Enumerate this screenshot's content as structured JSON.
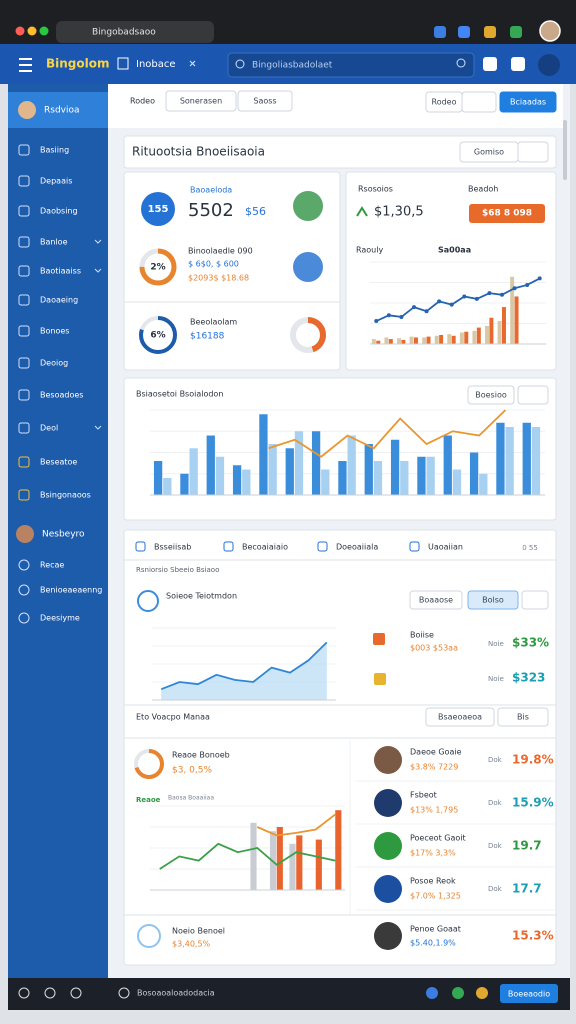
{
  "browser": {
    "url": "Bingobadsaoo"
  },
  "header": {
    "logo": "Bingolom",
    "tab": "Inobace",
    "search": "Bingoliasbadolaet"
  },
  "sidebar": {
    "active": "Rsdvioa",
    "items": [
      "Basiing",
      "Depaais",
      "Daobsing",
      "Banloe",
      "Baotiaaiss",
      "Daoaeing",
      "Bonoes",
      "Deoiog",
      "Besoadoes",
      "Deol",
      "Beseatoe",
      "Bsingonaoos"
    ],
    "profile": "Nesbeyro",
    "more": [
      "Recae",
      "Benioeaeaenng",
      "Deesiyme"
    ]
  },
  "toolbar": {
    "tabs": [
      "Rodeo",
      "Sonerasen",
      "Saoss"
    ],
    "filter": "Rodeo",
    "action": "Bciaadas"
  },
  "page_title": "Rituootsia Bnoeiisaoia",
  "page_button": "Gomiso",
  "stats": {
    "kpi": {
      "badge": "155",
      "label": "Baoaeloda",
      "value": "5502",
      "delta": "$56"
    },
    "second": {
      "badge": "2%",
      "label": "Binoolaedle 090",
      "line1": "$ 6$0, $ 600",
      "line2": "$2093$ $18.68"
    },
    "third": {
      "badge": "6%",
      "label": "Beeolaolam",
      "value": "$16188"
    }
  },
  "sales": {
    "label": "Rsosoios",
    "period": "Beadoh",
    "value": "$1,30,5",
    "button": "$68 8 098",
    "chart_label": "Raouly",
    "chart_note": "Sa00aa",
    "ylim": [
      0,
      100
    ],
    "line": [
      28,
      35,
      33,
      45,
      40,
      52,
      48,
      58,
      55,
      62,
      60,
      68,
      72,
      80
    ],
    "line_color": "#2563b0",
    "series": [
      {
        "color": "#d8c8a6",
        "values": [
          6,
          8,
          7,
          9,
          8,
          10,
          12,
          14,
          16,
          22,
          28,
          82,
          null,
          null
        ]
      },
      {
        "color": "#e8692e",
        "values": [
          4,
          6,
          5,
          8,
          9,
          11,
          10,
          15,
          20,
          32,
          45,
          58,
          null,
          null
        ]
      }
    ]
  },
  "main_chart": {
    "title": "Bsiaosetoi Bsoialodon",
    "button": "Boesioo",
    "ylim": [
      0,
      100
    ],
    "series": [
      {
        "color": "#3a8ddb",
        "values": [
          40,
          25,
          70,
          35,
          95,
          55,
          75,
          40,
          60,
          65,
          45,
          70,
          50,
          85,
          85
        ]
      },
      {
        "color": "#a8d0f0",
        "values": [
          20,
          55,
          45,
          30,
          60,
          75,
          30,
          70,
          40,
          40,
          45,
          30,
          25,
          80,
          80
        ]
      }
    ],
    "line": [
      null,
      null,
      null,
      null,
      55,
      65,
      45,
      70,
      55,
      90,
      60,
      75,
      70,
      100,
      null
    ],
    "line_color": "#e9962e"
  },
  "panel": {
    "tabs": [
      "Bsseiisab",
      "Becoaiaiaio",
      "Doeoaiiala",
      "Uaoaiian"
    ],
    "count": "0 55",
    "subtitle": "Rsniorsio Sbeeio Bsiaoo",
    "section": {
      "title": "Soieoe Teiotmdon",
      "buttons": [
        "Boaaose",
        "Bolso"
      ]
    },
    "area_chart": {
      "ylim": [
        0,
        100
      ],
      "line": [
        15,
        25,
        22,
        35,
        28,
        25,
        45,
        38,
        55,
        80
      ],
      "line_color": "#2f86d6"
    },
    "metrics": {
      "label": "Boiise",
      "sub": "$003 $53aa",
      "k1": "Noie",
      "v1": "$33%",
      "k2": "Noie",
      "v2": "$323"
    },
    "section2": {
      "title": "Eto Voacpo Manaa",
      "buttons": [
        "Bsaeoaeoa",
        "Bis"
      ]
    },
    "donut": {
      "label": "Reaoe Bonoeb",
      "value": "$3, 0,5%"
    },
    "mixed_chart": {
      "label": "Reaoe",
      "note": "Baosa Boaaiiaa",
      "ylim": [
        0,
        100
      ],
      "line": [
        25,
        40,
        35,
        55,
        45,
        50,
        30,
        45,
        40,
        35
      ],
      "line_color": "#3aa048",
      "series": [
        {
          "color": "#c9ccd2",
          "values": [
            null,
            null,
            null,
            null,
            null,
            80,
            70,
            55,
            null,
            null
          ]
        },
        {
          "color": "#e8632d",
          "values": [
            null,
            null,
            null,
            null,
            null,
            null,
            75,
            65,
            60,
            95
          ]
        }
      ],
      "line2": [
        null,
        null,
        null,
        null,
        null,
        75,
        65,
        68,
        72,
        90
      ],
      "line2_color": "#e9962e"
    },
    "people": [
      {
        "name": "Daeoe Goaie",
        "value": "$3.8% 7229",
        "key": "Dok",
        "pct": "19.8%",
        "color": "#e8692e"
      },
      {
        "name": "Fsbeot",
        "value": "$13% 1,795",
        "key": "Dok",
        "pct": "15.9%",
        "color": "#1a9fb5"
      },
      {
        "name": "Poeceot Gaoit",
        "value": "$17% 3,3%",
        "key": "Dok",
        "pct": "19.7",
        "color": "#2e9a3f"
      },
      {
        "name": "Posoe Reok",
        "value": "$7.0% 1,325",
        "key": "Dok",
        "pct": "17.7",
        "color": "#1a9fb5"
      }
    ],
    "footer_row": {
      "name": "Noeio Benoel",
      "value": "$3,40,5%",
      "person": "Penoe Goaat",
      "person_value": "$5.40,1.9%",
      "pct": "15.3%",
      "color": "#e8692e"
    }
  },
  "bottom_bar": {
    "text": "Bosoaoaloadodacia",
    "button": "Boeeaodio"
  }
}
